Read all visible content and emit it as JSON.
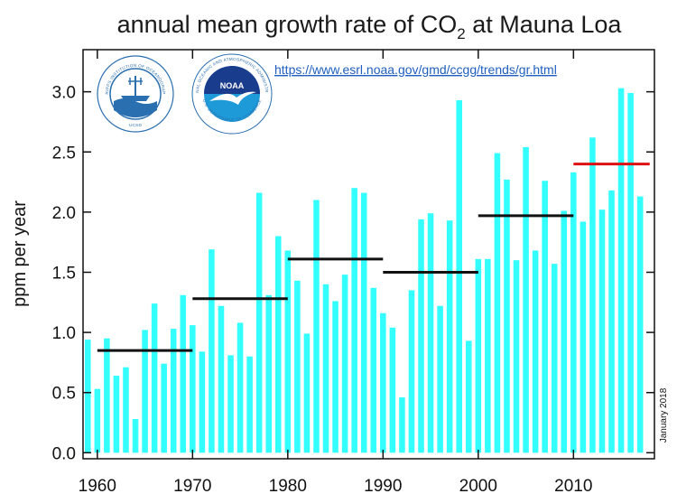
{
  "chart_data": {
    "type": "bar",
    "title": "annual mean growth rate of CO",
    "title_subscript": "2",
    "title_suffix": " at Mauna Loa",
    "xlabel": "",
    "ylabel": "ppm per year",
    "xlim": [
      1958.5,
      2018.5
    ],
    "ylim": [
      -0.05,
      3.35
    ],
    "x_ticks": [
      1960,
      1970,
      1980,
      1990,
      2000,
      2010
    ],
    "y_ticks": [
      "0.0",
      "0.5",
      "1.0",
      "1.5",
      "2.0",
      "2.5",
      "3.0"
    ],
    "bar_color": "#33ffff",
    "x": [
      1959,
      1960,
      1961,
      1962,
      1963,
      1964,
      1965,
      1966,
      1967,
      1968,
      1969,
      1970,
      1971,
      1972,
      1973,
      1974,
      1975,
      1976,
      1977,
      1978,
      1979,
      1980,
      1981,
      1982,
      1983,
      1984,
      1985,
      1986,
      1987,
      1988,
      1989,
      1990,
      1991,
      1992,
      1993,
      1994,
      1995,
      1996,
      1997,
      1998,
      1999,
      2000,
      2001,
      2002,
      2003,
      2004,
      2005,
      2006,
      2007,
      2008,
      2009,
      2010,
      2011,
      2012,
      2013,
      2014,
      2015,
      2016,
      2017
    ],
    "values": [
      0.94,
      0.53,
      0.95,
      0.64,
      0.71,
      0.28,
      1.02,
      1.24,
      0.74,
      1.03,
      1.31,
      1.06,
      0.84,
      1.69,
      1.22,
      0.81,
      1.08,
      0.8,
      2.16,
      1.31,
      1.8,
      1.68,
      1.43,
      0.99,
      2.1,
      1.4,
      1.26,
      1.48,
      2.2,
      2.16,
      1.37,
      1.16,
      1.04,
      0.46,
      1.35,
      1.94,
      1.99,
      1.22,
      1.93,
      2.93,
      0.93,
      1.61,
      1.61,
      2.49,
      2.27,
      1.6,
      2.54,
      1.68,
      2.26,
      1.57,
      2.01,
      2.33,
      1.92,
      2.62,
      2.02,
      2.18,
      3.03,
      2.99,
      2.13
    ],
    "decadal_means": [
      {
        "start": 1960,
        "end": 1970,
        "value": 0.85,
        "color": "#111111"
      },
      {
        "start": 1970,
        "end": 1980,
        "value": 1.28,
        "color": "#111111"
      },
      {
        "start": 1980,
        "end": 1990,
        "value": 1.61,
        "color": "#111111"
      },
      {
        "start": 1990,
        "end": 2000,
        "value": 1.5,
        "color": "#111111"
      },
      {
        "start": 2000,
        "end": 2010,
        "value": 1.97,
        "color": "#111111"
      },
      {
        "start": 2010,
        "end": 2018,
        "value": 2.4,
        "color": "#dd1111"
      }
    ],
    "side_note": "January 2018",
    "source_url": "https://www.esrl.noaa.gov/gmd/ccgg/trends/gr.html"
  },
  "logos": {
    "scripps_icon": "scripps-institution-seal-icon",
    "scripps_text": "SCRIPPS INSTITUTION OF OCEANOGRAPHY",
    "scripps_bottom": "UCSD",
    "noaa_icon": "noaa-logo-icon",
    "noaa_label": "NOAA",
    "noaa_text_top": "NATIONAL OCEANIC AND ATMOSPHERIC ADMINISTRATION",
    "noaa_text_bottom": "U.S. DEPARTMENT OF COMMERCE"
  }
}
